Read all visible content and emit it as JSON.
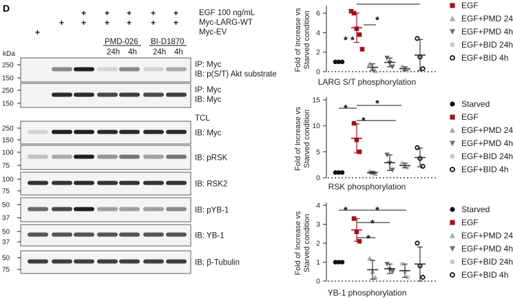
{
  "panel_letter": "D",
  "conditions": {
    "egf": {
      "label": "EGF 100 ng/mL",
      "marks": [
        "",
        "",
        "+",
        "+",
        "+",
        "+",
        "+"
      ]
    },
    "larg": {
      "label": "Myc-LARG-WT",
      "marks": [
        "",
        "+",
        "+",
        "+",
        "+",
        "+",
        "+"
      ]
    },
    "ev": {
      "label": "Myc-EV",
      "marks": [
        "+",
        "",
        "",
        "",
        "",
        "",
        ""
      ]
    }
  },
  "drug_groups": [
    {
      "name": "PMD-026",
      "times": [
        "24h",
        "4h"
      ]
    },
    {
      "name": "BI-D1870",
      "times": [
        "24h",
        "4h"
      ]
    }
  ],
  "kda_label": "kDa",
  "tcl_label": "TCL",
  "blots": [
    {
      "labels": [
        "IP: Myc",
        "IB: p(S/T) Akt substrate"
      ],
      "markers": [
        "250",
        "150"
      ],
      "intensity": [
        0.0,
        0.45,
        0.95,
        0.1,
        0.45,
        0.1,
        0.3
      ]
    },
    {
      "labels": [
        "IP: Myc",
        "IB: Myc"
      ],
      "markers": [
        "250",
        "150"
      ],
      "intensity": [
        0.0,
        0.9,
        0.9,
        0.75,
        0.8,
        0.75,
        0.8
      ]
    },
    {
      "labels": [
        "IB: Myc"
      ],
      "markers": [
        "250",
        "150"
      ],
      "intensity": [
        0.1,
        0.95,
        0.95,
        0.9,
        0.9,
        0.9,
        0.9
      ]
    },
    {
      "labels": [
        "IB: pRSK"
      ],
      "markers": [
        "100",
        "75"
      ],
      "intensity": [
        0.2,
        0.3,
        0.95,
        0.4,
        0.55,
        0.35,
        0.55
      ]
    },
    {
      "labels": [
        "IB: RSK2"
      ],
      "markers": [
        "100",
        "75"
      ],
      "intensity": [
        0.85,
        0.85,
        0.9,
        0.85,
        0.85,
        0.85,
        0.85
      ]
    },
    {
      "labels": [
        "IB: pYB-1"
      ],
      "markers": [
        "50",
        "37"
      ],
      "intensity": [
        0.6,
        0.75,
        0.95,
        0.35,
        0.35,
        0.35,
        0.45
      ]
    },
    {
      "labels": [
        "IB: YB-1"
      ],
      "markers": [
        "50",
        "37"
      ],
      "intensity": [
        0.7,
        0.7,
        0.7,
        0.7,
        0.7,
        0.7,
        0.7
      ]
    },
    {
      "labels": [
        "IB: β-Tubulin"
      ],
      "markers": [
        "50",
        "75"
      ],
      "intensity": [
        0.8,
        0.8,
        0.8,
        0.8,
        0.8,
        0.8,
        0.8
      ]
    }
  ],
  "legend": [
    {
      "name": "Starved",
      "marker": "circle-filled",
      "color": "#111111"
    },
    {
      "name": "EGF",
      "marker": "square",
      "color": "#a1121c"
    },
    {
      "name": "EGF+PMD 24h",
      "marker": "triangle-up",
      "color": "#a6a6a6"
    },
    {
      "name": "EGF+PMD 4h",
      "marker": "triangle-down",
      "color": "#6e6e6e"
    },
    {
      "name": "EGF+BID 24h",
      "marker": "circle-filled",
      "color": "#c8c8c8"
    },
    {
      "name": "EGF+BID 4h",
      "marker": "circle-open",
      "color": "#111111"
    }
  ],
  "chart_data": [
    {
      "type": "scatter",
      "title": "LARG S/T phosphorylation",
      "ylabel": "Fold of Increase vs Starved condition",
      "ylim": [
        0,
        6.5
      ],
      "yticks": [
        "0",
        "2",
        "4",
        "6"
      ],
      "baseline": 1,
      "groups": [
        {
          "name": "Starved",
          "points": [
            1,
            1,
            1
          ],
          "mean": 1
        },
        {
          "name": "EGF",
          "points": [
            6.2,
            6.0,
            4.4,
            3.8,
            2.3
          ],
          "mean": 4.5,
          "sd": 1.5
        },
        {
          "name": "EGF+PMD 24h",
          "points": [
            0.8,
            0.4,
            0.1
          ],
          "mean": 0.45,
          "sd": 0.35
        },
        {
          "name": "EGF+PMD 4h",
          "points": [
            1.4,
            0.9,
            0.5
          ],
          "mean": 0.95,
          "sd": 0.45
        },
        {
          "name": "EGF+BID 24h",
          "points": [
            0.5,
            0.3,
            0.1
          ],
          "mean": 0.3,
          "sd": 0.2
        },
        {
          "name": "EGF+BID 4h",
          "points": [
            3.4,
            1.5,
            0.3
          ],
          "mean": 1.7,
          "sd": 1.6
        }
      ],
      "significance": [
        "*",
        "* *"
      ]
    },
    {
      "type": "scatter",
      "title": "RSK phosphorylation",
      "ylabel": "Fold of Increase vs Starved condition",
      "ylim": [
        0,
        15
      ],
      "yticks": [
        "0",
        "5",
        "10",
        "15"
      ],
      "baseline": 1,
      "groups": [
        {
          "name": "Starved",
          "points": [
            1,
            1,
            1
          ],
          "mean": 1
        },
        {
          "name": "EGF",
          "points": [
            10.5,
            7.3,
            5.0
          ],
          "mean": 7.6,
          "sd": 2.8
        },
        {
          "name": "EGF+PMD 24h",
          "points": [
            1.2,
            1.0,
            0.8
          ],
          "mean": 1.0,
          "sd": 0.2
        },
        {
          "name": "EGF+PMD 4h",
          "points": [
            4.4,
            2.8,
            1.5
          ],
          "mean": 2.9,
          "sd": 1.5
        },
        {
          "name": "EGF+BID 24h",
          "points": [
            2.8,
            2.3,
            2.0
          ],
          "mean": 2.35,
          "sd": 0.45
        },
        {
          "name": "EGF+BID 4h",
          "points": [
            5.8,
            3.7,
            2.2
          ],
          "mean": 3.9,
          "sd": 1.8
        }
      ],
      "significance": [
        "*",
        "*",
        "*"
      ]
    },
    {
      "type": "scatter",
      "title": "YB-1 phosphorylation",
      "ylabel": "Fold of Increase vs Starved condition",
      "ylim": [
        0,
        4
      ],
      "yticks": [
        "0",
        "1",
        "2",
        "3",
        "4"
      ],
      "baseline": 1,
      "groups": [
        {
          "name": "Starved",
          "points": [
            1,
            1,
            1
          ],
          "mean": 1
        },
        {
          "name": "EGF",
          "points": [
            3.3,
            2.6,
            2.1
          ],
          "mean": 2.7,
          "sd": 0.6
        },
        {
          "name": "EGF+PMD 24h",
          "points": [
            1.2,
            0.5,
            0.2
          ],
          "mean": 0.6,
          "sd": 0.5
        },
        {
          "name": "EGF+PMD 4h",
          "points": [
            0.9,
            0.6,
            0.5
          ],
          "mean": 0.65,
          "sd": 0.25
        },
        {
          "name": "EGF+BID 24h",
          "points": [
            0.9,
            0.5,
            0.2
          ],
          "mean": 0.55,
          "sd": 0.35
        },
        {
          "name": "EGF+BID 4h",
          "points": [
            2.0,
            0.8,
            0.2
          ],
          "mean": 0.9,
          "sd": 0.9
        }
      ],
      "significance": [
        "*",
        "*",
        "*",
        "*"
      ]
    }
  ]
}
